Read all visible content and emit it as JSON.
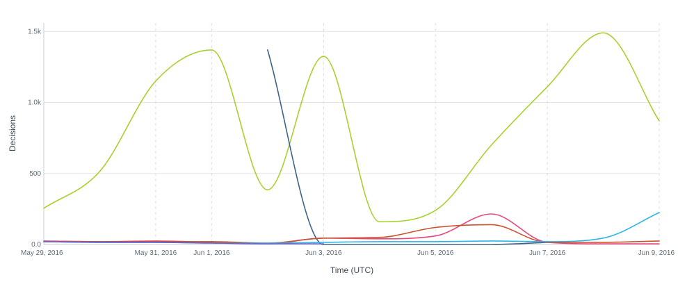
{
  "chart_data": {
    "type": "line",
    "title": "",
    "xlabel": "Time (UTC)",
    "ylabel": "Decisions",
    "x_range": [
      "2016-05-29",
      "2016-06-09"
    ],
    "ylim": [
      0,
      1560
    ],
    "grid": true,
    "y_ticks": [
      {
        "value": 0,
        "label": "0.0"
      },
      {
        "value": 500,
        "label": "500"
      },
      {
        "value": 1000,
        "label": "1.0k"
      },
      {
        "value": 1500,
        "label": "1.5k"
      }
    ],
    "x_ticks": [
      {
        "date": "2016-05-29",
        "label": "May 29, 2016"
      },
      {
        "date": "2016-05-31",
        "label": "May 31, 2016"
      },
      {
        "date": "2016-06-01",
        "label": "Jun 1, 2016"
      },
      {
        "date": "2016-06-03",
        "label": "Jun 3, 2016"
      },
      {
        "date": "2016-06-05",
        "label": "Jun 5, 2016"
      },
      {
        "date": "2016-06-07",
        "label": "Jun 7, 2016"
      },
      {
        "date": "2016-06-09",
        "label": "Jun 9, 2016"
      }
    ],
    "series": [
      {
        "color": "#a6d12e",
        "points": [
          [
            "2016-05-29",
            255
          ],
          [
            "2016-05-30",
            515
          ],
          [
            "2016-05-31",
            1150
          ],
          [
            "2016-06-01",
            1370
          ],
          [
            "2016-06-02",
            385
          ],
          [
            "2016-06-03",
            1325
          ],
          [
            "2016-06-04",
            160
          ],
          [
            "2016-06-05",
            240
          ],
          [
            "2016-06-06",
            700
          ],
          [
            "2016-06-07",
            1110
          ],
          [
            "2016-06-08",
            1490
          ],
          [
            "2016-06-09",
            870
          ]
        ]
      },
      {
        "color": "#3f6387",
        "points": [
          [
            "2016-06-02",
            1370
          ],
          [
            "2016-06-03",
            0
          ],
          [
            "2016-06-04",
            0
          ],
          [
            "2016-06-05",
            0
          ],
          [
            "2016-06-06",
            0
          ],
          [
            "2016-06-07",
            15
          ]
        ]
      },
      {
        "color": "#e8477a",
        "points": [
          [
            "2016-05-29",
            25
          ],
          [
            "2016-05-30",
            20
          ],
          [
            "2016-05-31",
            25
          ],
          [
            "2016-06-01",
            15
          ],
          [
            "2016-06-02",
            5
          ],
          [
            "2016-06-03",
            45
          ],
          [
            "2016-06-04",
            40
          ],
          [
            "2016-06-05",
            60
          ],
          [
            "2016-06-06",
            215
          ],
          [
            "2016-06-07",
            15
          ],
          [
            "2016-06-08",
            5
          ],
          [
            "2016-06-09",
            5
          ]
        ]
      },
      {
        "color": "#c8522e",
        "points": [
          [
            "2016-05-29",
            20
          ],
          [
            "2016-05-30",
            20
          ],
          [
            "2016-05-31",
            20
          ],
          [
            "2016-06-01",
            20
          ],
          [
            "2016-06-02",
            10
          ],
          [
            "2016-06-03",
            45
          ],
          [
            "2016-06-04",
            50
          ],
          [
            "2016-06-05",
            120
          ],
          [
            "2016-06-06",
            140
          ],
          [
            "2016-06-07",
            15
          ],
          [
            "2016-06-08",
            15
          ],
          [
            "2016-06-09",
            25
          ]
        ]
      },
      {
        "color": "#2fb4e8",
        "points": [
          [
            "2016-05-29",
            20
          ],
          [
            "2016-05-30",
            15
          ],
          [
            "2016-05-31",
            15
          ],
          [
            "2016-06-01",
            10
          ],
          [
            "2016-06-02",
            10
          ],
          [
            "2016-06-03",
            15
          ],
          [
            "2016-06-04",
            20
          ],
          [
            "2016-06-05",
            20
          ],
          [
            "2016-06-06",
            25
          ],
          [
            "2016-06-07",
            20
          ],
          [
            "2016-06-08",
            45
          ],
          [
            "2016-06-09",
            225
          ]
        ]
      },
      {
        "color": "#6a63c9",
        "points": [
          [
            "2016-05-29",
            20
          ],
          [
            "2016-05-30",
            15
          ],
          [
            "2016-05-31",
            15
          ],
          [
            "2016-06-01",
            10
          ],
          [
            "2016-06-02",
            5
          ],
          [
            "2016-06-03",
            5
          ]
        ]
      }
    ]
  }
}
